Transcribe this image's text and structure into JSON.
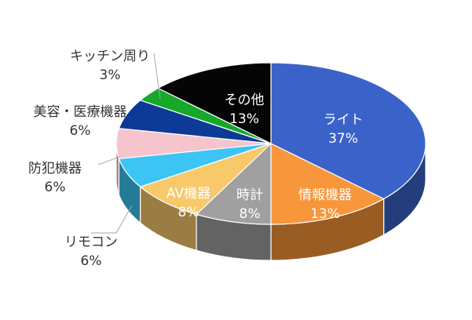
{
  "chart_data": {
    "type": "pie",
    "title": "",
    "unit": "%",
    "slices": [
      {
        "label": "ライト",
        "value": 37,
        "color": "#3a62c8",
        "label_color": "#ffffff"
      },
      {
        "label": "情報機器",
        "value": 13,
        "color": "#f7963a",
        "label_color": "#ffffff"
      },
      {
        "label": "時計",
        "value": 8,
        "color": "#a0a0a0",
        "label_color": "#ffffff"
      },
      {
        "label": "AV機器",
        "value": 8,
        "color": "#f7c96a",
        "label_color": "#ffffff"
      },
      {
        "label": "リモコン",
        "value": 6,
        "color": "#3cc4f4",
        "label_color": "#333333"
      },
      {
        "label": "防犯機器",
        "value": 6,
        "color": "#f6c4cc",
        "label_color": "#333333"
      },
      {
        "label": "美容・医療機器",
        "value": 6,
        "color": "#0d3a96",
        "label_color": "#333333"
      },
      {
        "label": "キッチン周り",
        "value": 3,
        "color": "#17a82a",
        "label_color": "#333333"
      },
      {
        "label": "その他",
        "value": 13,
        "color": "#050505",
        "label_color": "#ffffff"
      }
    ]
  }
}
